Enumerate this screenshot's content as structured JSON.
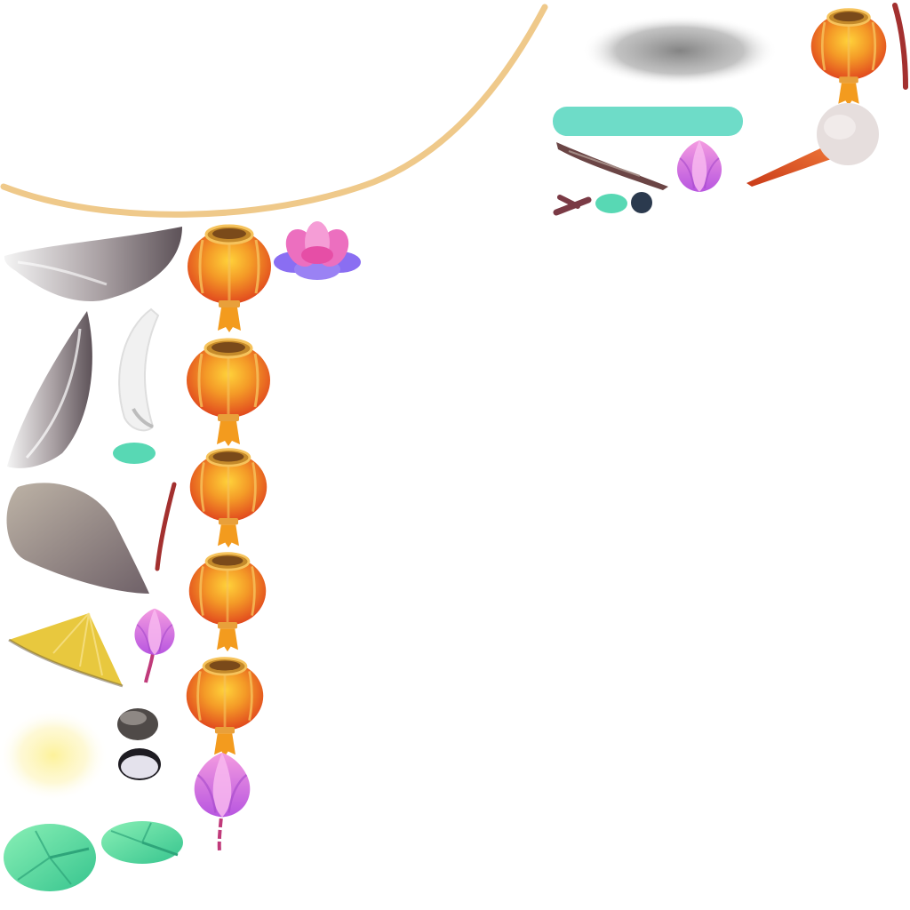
{
  "atlas": {
    "type": "sprite-sheet",
    "background": "#ffffff",
    "sprites": [
      {
        "name": "rope-curve",
        "color": "#efc98a"
      },
      {
        "name": "shadow-blob",
        "color": "#8c8c8c"
      },
      {
        "name": "lantern",
        "colors": [
          "#f2a425",
          "#e04a1e",
          "#f0b83a"
        ]
      },
      {
        "name": "red-stick",
        "color": "#a3302f"
      },
      {
        "name": "teal-bar",
        "color": "#6edcc8"
      },
      {
        "name": "log-branch",
        "color": "#6b4545"
      },
      {
        "name": "lotus-bud",
        "color": "#d775e6"
      },
      {
        "name": "torch-stick",
        "colors": [
          "#d9471d",
          "#e6dedd"
        ]
      },
      {
        "name": "teal-pebble",
        "color": "#58d8b4"
      },
      {
        "name": "dark-pebble",
        "color": "#2b3a4e"
      },
      {
        "name": "gray-wing",
        "color": "#8a7e80"
      },
      {
        "name": "white-feather",
        "color": "#f1f1f1"
      },
      {
        "name": "lotus-flower",
        "colors": [
          "#ec6fbf",
          "#8a6ef2"
        ]
      },
      {
        "name": "cloth-drape",
        "color": "#a59b8e"
      },
      {
        "name": "straw-hat",
        "color": "#e8c83e"
      },
      {
        "name": "glow-orb",
        "color": "#fbf3b0"
      },
      {
        "name": "gray-stone",
        "color": "#4f4a48"
      },
      {
        "name": "white-stone",
        "color": "#e4e2ec"
      },
      {
        "name": "lily-pad",
        "color": "#4fdc9a"
      }
    ]
  }
}
